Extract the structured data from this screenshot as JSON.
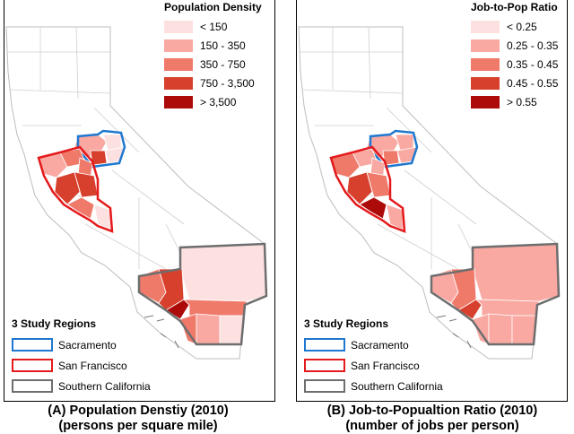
{
  "colors": {
    "c1": "#fde1e1",
    "c2": "#f9a9a2",
    "c3": "#ef7a6a",
    "c4": "#d8402e",
    "c5": "#ad0a0a",
    "sacramento": "#1f78d0",
    "san_francisco": "#e41a1c",
    "southern_california": "#6e6e6e"
  },
  "panel_a": {
    "legend_title": "Population Density",
    "legend": [
      {
        "label": "< 150",
        "color": "#fde1e1"
      },
      {
        "label": "150 - 350",
        "color": "#f9a9a2"
      },
      {
        "label": "350 - 750",
        "color": "#ef7a6a"
      },
      {
        "label": "750 - 3,500",
        "color": "#d8402e"
      },
      {
        "label": "> 3,500",
        "color": "#ad0a0a"
      }
    ],
    "regions_title": "3 Study Regions",
    "regions": [
      {
        "label": "Sacramento",
        "color": "#1f78d0"
      },
      {
        "label": "San Francisco",
        "color": "#e41a1c"
      },
      {
        "label": "Southern California",
        "color": "#6e6e6e"
      }
    ],
    "caption_line1": "(A) Population Denstiy (2010)",
    "caption_line2": "(persons per square mile)"
  },
  "panel_b": {
    "legend_title": "Job-to-Pop Ratio",
    "legend": [
      {
        "label": "< 0.25",
        "color": "#fde1e1"
      },
      {
        "label": "0.25 - 0.35",
        "color": "#f9a9a2"
      },
      {
        "label": "0.35 - 0.45",
        "color": "#ef7a6a"
      },
      {
        "label": "0.45 - 0.55",
        "color": "#d8402e"
      },
      {
        "label": "> 0.55",
        "color": "#ad0a0a"
      }
    ],
    "regions_title": "3 Study Regions",
    "regions": [
      {
        "label": "Sacramento",
        "color": "#1f78d0"
      },
      {
        "label": "San Francisco",
        "color": "#e41a1c"
      },
      {
        "label": "Southern California",
        "color": "#6e6e6e"
      }
    ],
    "caption_line1": "(B) Job-to-Popualtion Ratio (2010)",
    "caption_line2": "(number of jobs per person)"
  }
}
